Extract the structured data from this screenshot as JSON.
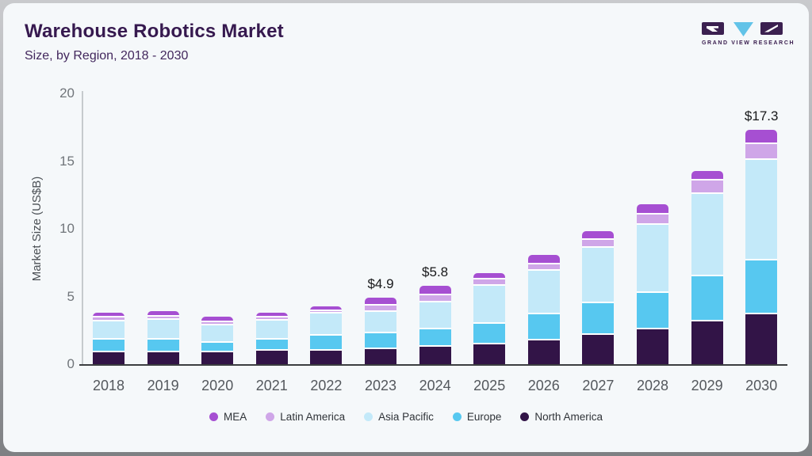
{
  "header": {
    "title": "Warehouse Robotics Market",
    "subtitle": "Size, by Region, 2018 - 2030"
  },
  "logo": {
    "text": "GRAND VIEW RESEARCH",
    "colors": {
      "block": "#3b2050",
      "triangle": "#62c3e8"
    }
  },
  "chart_data": {
    "type": "bar",
    "stacked": true,
    "title": "Warehouse Robotics Market Size, by Region, 2018 - 2030",
    "xlabel": "",
    "ylabel": "Market Size (US$B)",
    "ylim": [
      0,
      20
    ],
    "yticks": [
      0,
      5,
      10,
      15,
      20
    ],
    "grid": false,
    "legend_position": "bottom",
    "categories": [
      "2018",
      "2019",
      "2020",
      "2021",
      "2022",
      "2023",
      "2024",
      "2025",
      "2026",
      "2027",
      "2028",
      "2029",
      "2030"
    ],
    "series": [
      {
        "name": "North America",
        "color": "#321447",
        "values": [
          1.0,
          1.0,
          1.0,
          1.1,
          1.1,
          1.25,
          1.4,
          1.6,
          1.9,
          2.3,
          2.7,
          3.3,
          3.8
        ]
      },
      {
        "name": "Europe",
        "color": "#57c8f0",
        "values": [
          0.9,
          0.95,
          0.7,
          0.8,
          1.1,
          1.15,
          1.3,
          1.5,
          1.9,
          2.3,
          2.7,
          3.3,
          4.0
        ]
      },
      {
        "name": "Asia Pacific",
        "color": "#c3e9f9",
        "values": [
          1.4,
          1.45,
          1.3,
          1.45,
          1.65,
          1.6,
          2.0,
          2.8,
          3.2,
          4.1,
          5.0,
          6.1,
          7.4
        ]
      },
      {
        "name": "Latin America",
        "color": "#cfa6e8",
        "values": [
          0.25,
          0.25,
          0.2,
          0.2,
          0.2,
          0.45,
          0.5,
          0.45,
          0.5,
          0.6,
          0.8,
          1.0,
          1.2
        ]
      },
      {
        "name": "MEA",
        "color": "#a64fd2",
        "values": [
          0.25,
          0.25,
          0.3,
          0.25,
          0.25,
          0.45,
          0.6,
          0.35,
          0.6,
          0.5,
          0.6,
          0.6,
          0.9
        ]
      }
    ],
    "totals": [
      3.8,
      3.9,
      3.5,
      3.8,
      4.3,
      4.9,
      5.8,
      6.7,
      8.1,
      9.8,
      11.8,
      14.3,
      17.3
    ],
    "bar_labels": {
      "2023": "$4.9",
      "2024": "$5.8",
      "2030": "$17.3"
    },
    "legend_order": [
      "MEA",
      "Latin America",
      "Asia Pacific",
      "Europe",
      "North America"
    ]
  }
}
